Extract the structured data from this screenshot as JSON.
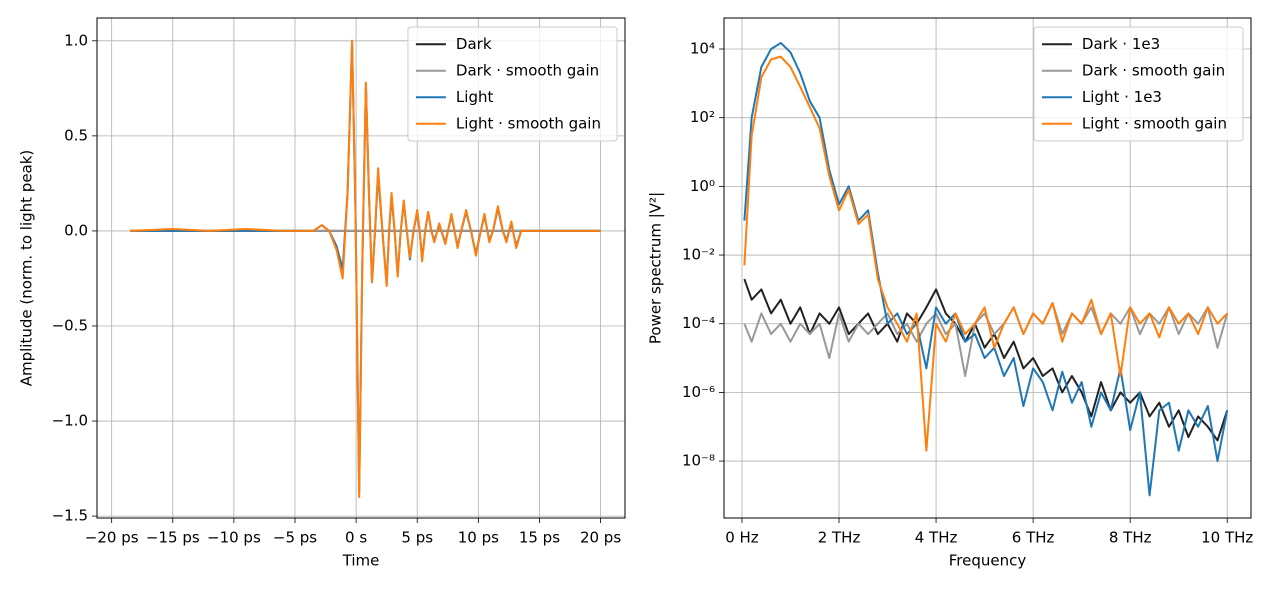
{
  "chart_data": [
    {
      "type": "line",
      "xlabel": "Time",
      "ylabel": "Amplitude (norm. to light peak)",
      "x": [
        -18.5,
        -15,
        -12,
        -9,
        -6,
        -3.5,
        -2.8,
        -2.2,
        -1.6,
        -1.1,
        -0.7,
        -0.33,
        -0.05,
        0.25,
        0.5,
        0.8,
        1.05,
        1.3,
        1.55,
        1.8,
        2.15,
        2.5,
        2.7,
        2.9,
        3.15,
        3.4,
        3.65,
        3.9,
        4.15,
        4.4,
        4.7,
        5.0,
        5.2,
        5.4,
        5.65,
        5.9,
        6.15,
        6.4,
        6.8,
        7.3,
        7.8,
        8.3,
        8.6,
        9.0,
        9.4,
        9.8,
        10.2,
        10.5,
        10.9,
        11.2,
        11.6,
        12.0,
        12.3,
        12.7,
        13.1,
        13.5,
        15,
        17,
        20
      ],
      "series": [
        {
          "name": "Dark",
          "color": "#222222",
          "values": [
            0,
            0,
            0,
            0,
            0,
            0,
            0,
            0,
            0,
            0,
            0,
            0,
            0,
            0,
            0,
            0,
            0,
            0,
            0,
            0,
            0,
            0,
            0,
            0,
            0,
            0,
            0,
            0,
            0,
            0,
            0,
            0,
            0,
            0,
            0,
            0,
            0,
            0,
            0,
            0,
            0,
            0,
            0,
            0,
            0,
            0,
            0,
            0,
            0,
            0,
            0,
            0,
            0,
            0,
            0,
            0,
            0,
            0,
            0
          ]
        },
        {
          "name": "Dark · smooth gain",
          "color": "#999999",
          "values": [
            0,
            0,
            0,
            0,
            0,
            0,
            0,
            0,
            0,
            0,
            0,
            0,
            0,
            0,
            0,
            0,
            0,
            0,
            0,
            0,
            0,
            0,
            0,
            0,
            0,
            0,
            0,
            0,
            0,
            0,
            0,
            0,
            0,
            0,
            0,
            0,
            0,
            0,
            0,
            0,
            0,
            0,
            0,
            0,
            0,
            0,
            0,
            0,
            0,
            0,
            0,
            0,
            0,
            0,
            0,
            0,
            0,
            0,
            0
          ]
        },
        {
          "name": "Light",
          "color": "#1f77b4",
          "values": [
            0,
            0,
            0,
            0,
            0,
            0,
            0.03,
            0,
            -0.08,
            -0.2,
            0.2,
            1.0,
            0.1,
            -1.38,
            -0.2,
            0.77,
            0.2,
            -0.27,
            0,
            0.3,
            0,
            -0.28,
            0,
            0.18,
            0,
            -0.23,
            0,
            0.15,
            0,
            -0.15,
            0,
            0.1,
            0,
            -0.15,
            0,
            0.1,
            0,
            -0.05,
            0.03,
            -0.06,
            0.08,
            -0.08,
            0,
            0.1,
            0,
            -0.12,
            0,
            0.08,
            -0.05,
            0,
            0.12,
            0,
            -0.05,
            0.04,
            -0.08,
            0,
            0,
            0,
            0
          ]
        },
        {
          "name": "Light · smooth gain",
          "color": "#ff7f0e",
          "values": [
            0,
            0.01,
            0,
            0.01,
            0,
            0,
            0.03,
            0,
            -0.1,
            -0.25,
            0.2,
            1.0,
            0.1,
            -1.4,
            -0.2,
            0.78,
            0.2,
            -0.27,
            0,
            0.33,
            0,
            -0.29,
            0,
            0.2,
            0,
            -0.24,
            0,
            0.16,
            0,
            -0.14,
            0,
            0.11,
            0,
            -0.16,
            0,
            0.1,
            0,
            -0.06,
            0.04,
            -0.07,
            0.09,
            -0.09,
            0,
            0.11,
            0,
            -0.13,
            0,
            0.09,
            -0.06,
            0,
            0.13,
            0,
            -0.06,
            0.05,
            -0.09,
            0,
            0,
            0,
            0
          ]
        }
      ],
      "xlim": [
        -21.2,
        22.0
      ],
      "ylim": [
        -1.51,
        1.12
      ],
      "xticks": [
        {
          "value": -20,
          "label": "−20 ps"
        },
        {
          "value": -15,
          "label": "−15 ps"
        },
        {
          "value": -10,
          "label": "−10 ps"
        },
        {
          "value": -5,
          "label": "−5 ps"
        },
        {
          "value": 0,
          "label": "0 s"
        },
        {
          "value": 5,
          "label": "5 ps"
        },
        {
          "value": 10,
          "label": "10 ps"
        },
        {
          "value": 15,
          "label": "15 ps"
        },
        {
          "value": 20,
          "label": "20 ps"
        }
      ],
      "yticks": [
        {
          "value": -1.5,
          "label": "−1.5"
        },
        {
          "value": -1.0,
          "label": "−1.0"
        },
        {
          "value": -0.5,
          "label": "−0.5"
        },
        {
          "value": 0,
          "label": "0.0"
        },
        0.5,
        {
          "value": 1.0,
          "label": "1.0"
        }
      ],
      "grid": true,
      "legend": "upper right",
      "yscale": "linear"
    },
    {
      "type": "line",
      "xlabel": "Frequency",
      "ylabel": "Power spectrum |V²|",
      "x": [
        0.05,
        0.2,
        0.4,
        0.6,
        0.8,
        1.0,
        1.2,
        1.4,
        1.6,
        1.8,
        2.0,
        2.2,
        2.4,
        2.6,
        2.8,
        3.0,
        3.2,
        3.4,
        3.6,
        3.8,
        4.0,
        4.2,
        4.4,
        4.6,
        4.8,
        5.0,
        5.2,
        5.4,
        5.6,
        5.8,
        6.0,
        6.2,
        6.4,
        6.6,
        6.8,
        7.0,
        7.2,
        7.4,
        7.6,
        7.8,
        8.0,
        8.2,
        8.4,
        8.6,
        8.8,
        9.0,
        9.2,
        9.4,
        9.6,
        9.8,
        10.0
      ],
      "series": [
        {
          "name": "Dark · 1e3",
          "color": "#222222",
          "values": [
            0.002,
            0.0005,
            0.001,
            0.0002,
            0.0005,
            0.0001,
            0.0003,
            5e-05,
            0.0002,
            0.0001,
            0.0003,
            5e-05,
            0.0001,
            0.0002,
            5e-05,
            0.0001,
            3e-05,
            0.0002,
            0.0001,
            0.0003,
            0.001,
            0.0002,
            0.0001,
            3e-05,
            0.0001,
            2e-05,
            5e-05,
            1e-05,
            3e-05,
            5e-06,
            1e-05,
            3e-06,
            5e-06,
            1e-06,
            3e-06,
            1e-06,
            2e-07,
            2e-06,
            3e-07,
            1e-06,
            5e-07,
            1e-06,
            2e-07,
            5e-07,
            1e-07,
            3e-07,
            5e-08,
            2e-07,
            1e-07,
            4e-08,
            3e-07
          ]
        },
        {
          "name": "Dark · smooth gain",
          "color": "#999999",
          "values": [
            0.0001,
            3e-05,
            0.0002,
            5e-05,
            0.0001,
            3e-05,
            0.0001,
            5e-05,
            0.0001,
            1e-05,
            0.0002,
            3e-05,
            0.0001,
            5e-05,
            0.0001,
            0.0002,
            5e-05,
            0.0001,
            3e-05,
            0.0001,
            0.0002,
            5e-05,
            0.0001,
            3e-06,
            0.0001,
            0.0002,
            5e-05,
            0.0001,
            0.0003,
            5e-05,
            0.0002,
            0.0001,
            0.0004,
            5e-05,
            0.0002,
            0.0001,
            0.0003,
            5e-05,
            0.0002,
            0.0001,
            0.0003,
            5e-05,
            0.0002,
            0.0001,
            0.0003,
            5e-05,
            0.0002,
            0.0001,
            0.0003,
            2e-05,
            0.0002
          ]
        },
        {
          "name": "Light · 1e3",
          "color": "#1f77b4",
          "values": [
            0.1,
            100,
            3000,
            10000,
            15000,
            8000,
            2000,
            300,
            100,
            3,
            0.3,
            1,
            0.1,
            0.2,
            0.003,
            0.0001,
            0.0002,
            5e-05,
            0.0001,
            5e-06,
            0.0003,
            0.0001,
            0.0002,
            3e-05,
            5e-05,
            1e-05,
            2e-05,
            3e-06,
            1e-05,
            4e-07,
            5e-06,
            2e-06,
            3e-07,
            4e-06,
            5e-07,
            2e-06,
            1e-07,
            1e-06,
            3e-07,
            5e-06,
            8e-08,
            1e-06,
            1e-09,
            3e-07,
            5e-07,
            2e-08,
            3e-07,
            1e-07,
            4e-07,
            1e-08,
            3e-07
          ]
        },
        {
          "name": "Light · smooth gain",
          "color": "#ff7f0e",
          "values": [
            0.005,
            30,
            1500,
            5000,
            6000,
            3000,
            800,
            200,
            50,
            2,
            0.2,
            0.8,
            0.08,
            0.15,
            0.002,
            0.0003,
            0.0001,
            3e-05,
            0.0002,
            2e-08,
            0.0001,
            3e-05,
            0.0002,
            5e-05,
            0.0001,
            0.0003,
            2e-05,
            0.0001,
            0.0003,
            5e-05,
            0.0002,
            0.0001,
            0.0004,
            3e-05,
            0.0002,
            0.0001,
            0.0005,
            5e-05,
            0.0002,
            3e-06,
            0.0003,
            0.0001,
            0.0002,
            4e-05,
            0.0003,
            0.0001,
            0.0002,
            5e-05,
            0.0003,
            0.0001,
            0.0002
          ]
        }
      ],
      "xlim": [
        -0.37,
        10.49
      ],
      "ylim": [
        2.2e-10,
        80000
      ],
      "xticks": [
        {
          "value": 0,
          "label": "0 Hz"
        },
        {
          "value": 2,
          "label": "2 THz"
        },
        {
          "value": 4,
          "label": "4 THz"
        },
        {
          "value": 6,
          "label": "6 THz"
        },
        {
          "value": 8,
          "label": "8 THz"
        },
        {
          "value": 10,
          "label": "10 THz"
        }
      ],
      "yticks": [
        {
          "value": 1e-08,
          "label": "10⁻⁸"
        },
        {
          "value": 1e-06,
          "label": "10⁻⁶"
        },
        {
          "value": 0.0001,
          "label": "10⁻⁴"
        },
        {
          "value": 0.01,
          "label": "10⁻²"
        },
        {
          "value": 1,
          "label": "10⁰"
        },
        {
          "value": 100,
          "label": "10²"
        },
        {
          "value": 10000,
          "label": "10⁴"
        }
      ],
      "grid": true,
      "legend": "upper right",
      "yscale": "log"
    }
  ]
}
